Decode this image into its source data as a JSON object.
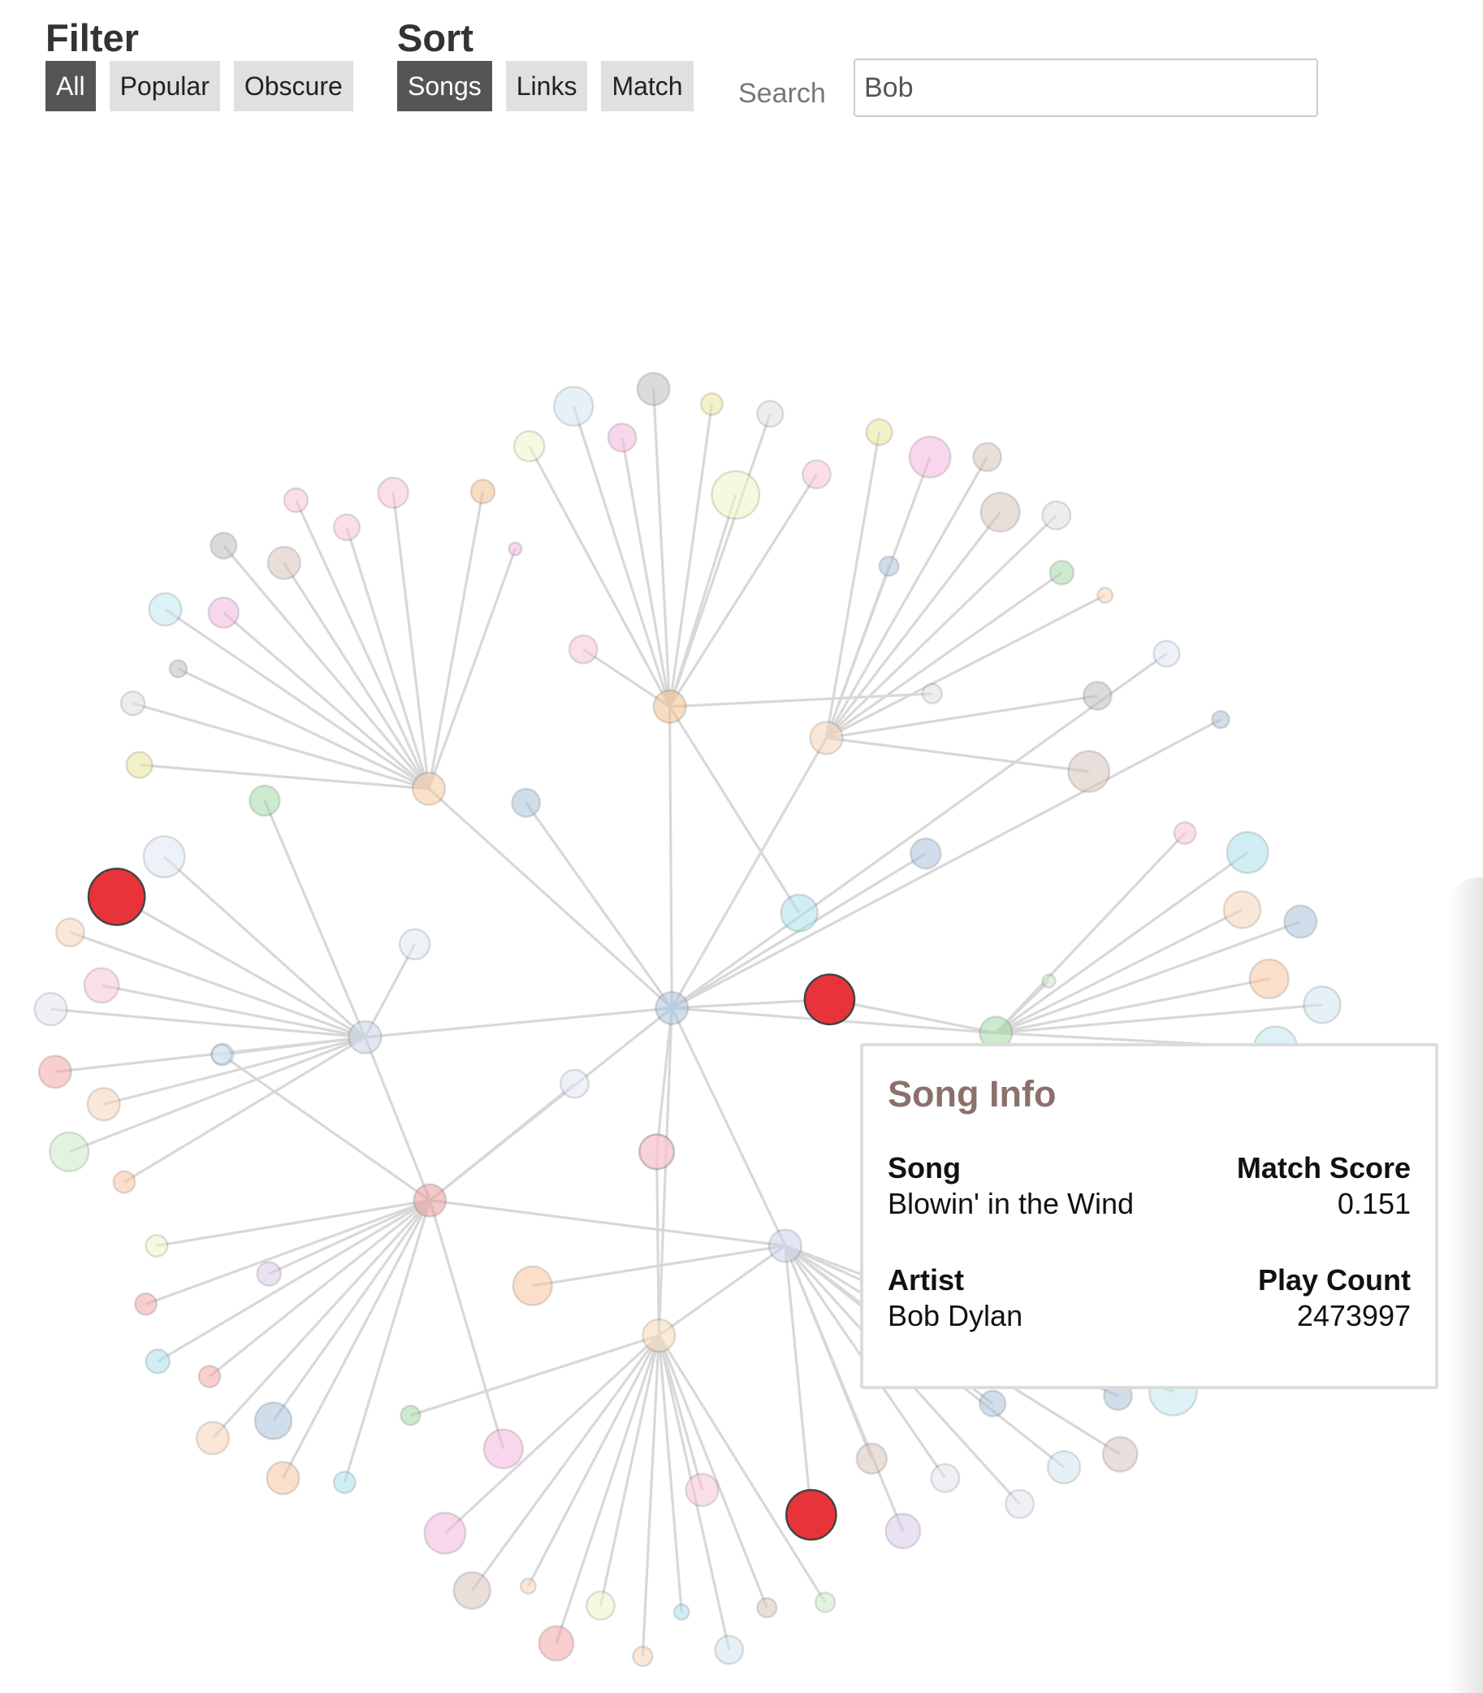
{
  "filter": {
    "label": "Filter",
    "buttons": [
      {
        "label": "All",
        "active": true
      },
      {
        "label": "Popular",
        "active": false
      },
      {
        "label": "Obscure",
        "active": false
      }
    ]
  },
  "sort": {
    "label": "Sort",
    "buttons": [
      {
        "label": "Songs",
        "active": true
      },
      {
        "label": "Links",
        "active": false
      },
      {
        "label": "Match",
        "active": false
      }
    ]
  },
  "search": {
    "label": "Search",
    "value": "Bob"
  },
  "tooltip": {
    "title": "Song Info",
    "song_label": "Song",
    "song_value": "Blowin' in the Wind",
    "match_label": "Match Score",
    "match_value": "0.151",
    "artist_label": "Artist",
    "artist_value": "Bob Dylan",
    "playcount_label": "Play Count",
    "playcount_value": "2473997"
  },
  "colors": {
    "highlight": "#e8333a",
    "link": "#d8d8d8",
    "active_button": "#555555",
    "button": "#e0e0e0",
    "tooltip_title": "#8c706b"
  }
}
